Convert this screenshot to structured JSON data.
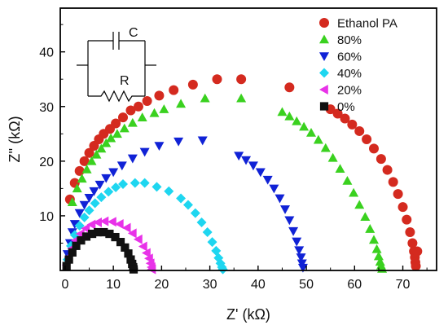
{
  "chart_data": {
    "type": "scatter",
    "title": "",
    "xlabel": "Z' (kΩ)",
    "ylabel": "Z'' (kΩ)",
    "xlim": [
      -1,
      77
    ],
    "ylim": [
      0,
      48
    ],
    "xticks": [
      0,
      10,
      20,
      30,
      40,
      50,
      60,
      70
    ],
    "yticks": [
      10,
      20,
      30,
      40
    ],
    "grid": false,
    "legend_position": "top-right",
    "inset_labels": {
      "capacitor": "C",
      "resistor": "R"
    },
    "series": [
      {
        "name": "Ethanol PA",
        "marker": "circle",
        "color": "#d42a1f",
        "x": [
          1.0,
          2.0,
          3.0,
          4.0,
          5.0,
          6.0,
          7.0,
          8.0,
          9.3,
          10.5,
          12.0,
          13.6,
          15.2,
          17.0,
          19.5,
          22.5,
          26.5,
          31.5,
          36.5,
          46.5,
          55.0,
          56.5,
          58.0,
          59.5,
          61.0,
          62.5,
          64.0,
          65.5,
          66.8,
          68.0,
          69.0,
          70.0,
          70.8,
          71.5,
          72.0,
          72.3,
          72.5,
          72.6,
          72.7,
          73.0
        ],
        "y": [
          13.0,
          16.0,
          18.2,
          20.0,
          21.5,
          22.8,
          24.0,
          25.0,
          25.9,
          26.9,
          28.0,
          29.3,
          30.0,
          31.0,
          32.0,
          33.0,
          34.0,
          35.0,
          35.0,
          33.5,
          29.5,
          28.7,
          27.8,
          26.7,
          25.5,
          24.0,
          22.3,
          20.4,
          18.4,
          16.2,
          14.0,
          11.6,
          9.3,
          7.0,
          5.0,
          3.5,
          2.4,
          1.5,
          0.8,
          3.5
        ]
      },
      {
        "name": "80%",
        "marker": "triangle-up",
        "color": "#3ad11f",
        "x": [
          1.5,
          2.5,
          3.5,
          4.5,
          5.5,
          6.5,
          7.5,
          8.5,
          9.5,
          10.8,
          12.3,
          14.0,
          16.0,
          18.5,
          20.5,
          24.0,
          29.0,
          36.5,
          45.0,
          46.5,
          48.0,
          49.5,
          51.0,
          52.5,
          54.0,
          55.5,
          57.0,
          58.5,
          59.8,
          61.0,
          62.2,
          63.2,
          64.0,
          64.6,
          65.0,
          65.3,
          65.5,
          65.7
        ],
        "y": [
          12.5,
          15.0,
          16.8,
          18.5,
          20.0,
          21.2,
          22.3,
          23.3,
          24.2,
          25.0,
          26.0,
          27.0,
          28.0,
          28.8,
          29.5,
          30.5,
          31.5,
          31.5,
          29.0,
          28.2,
          27.3,
          26.3,
          25.2,
          23.9,
          22.4,
          20.6,
          18.6,
          16.4,
          14.2,
          12.0,
          9.8,
          7.6,
          5.6,
          3.9,
          2.6,
          1.6,
          0.9,
          0.3
        ]
      },
      {
        "name": "60%",
        "marker": "triangle-down",
        "color": "#1022d6",
        "x": [
          0.5,
          1.0,
          1.5,
          2.0,
          3.0,
          4.0,
          5.0,
          6.0,
          7.2,
          8.5,
          10.0,
          11.8,
          14.0,
          16.5,
          19.5,
          23.5,
          28.5,
          36.0,
          37.5,
          39.0,
          40.5,
          42.0,
          43.3,
          44.5,
          45.6,
          46.5,
          47.3,
          48.0,
          48.5,
          48.9,
          49.1,
          49.3
        ],
        "y": [
          3.0,
          5.0,
          7.0,
          8.5,
          10.5,
          12.0,
          13.3,
          14.5,
          15.7,
          16.9,
          18.0,
          19.2,
          20.5,
          21.7,
          22.8,
          23.6,
          23.8,
          21.0,
          20.2,
          19.2,
          18.0,
          16.6,
          15.0,
          13.2,
          11.2,
          9.2,
          7.2,
          5.3,
          3.7,
          2.4,
          1.3,
          0.5
        ]
      },
      {
        "name": "40%",
        "marker": "diamond",
        "color": "#1ed6f0",
        "x": [
          0.5,
          1.2,
          2.0,
          3.0,
          4.0,
          5.0,
          6.2,
          7.5,
          9.0,
          10.5,
          12.0,
          14.5,
          16.5,
          19.0,
          21.5,
          24.0,
          25.5,
          27.0,
          28.3,
          29.5,
          30.5,
          31.3,
          31.8,
          32.2,
          32.5,
          32.7
        ],
        "y": [
          2.0,
          4.5,
          6.5,
          8.2,
          9.7,
          11.0,
          12.3,
          13.4,
          14.4,
          15.2,
          15.8,
          16.0,
          16.0,
          15.3,
          14.5,
          13.2,
          12.0,
          10.5,
          8.8,
          7.0,
          5.2,
          3.6,
          2.3,
          1.3,
          0.6,
          0.2
        ]
      },
      {
        "name": "20%",
        "marker": "triangle-left",
        "color": "#e832e8",
        "x": [
          0.3,
          0.8,
          1.4,
          2.2,
          3.2,
          4.3,
          5.5,
          6.8,
          8.2,
          9.8,
          11.3,
          12.8,
          14.0,
          15.2,
          16.2,
          16.9,
          17.4,
          17.7,
          17.9,
          18.0
        ],
        "y": [
          1.0,
          2.5,
          4.0,
          5.5,
          6.7,
          7.7,
          8.4,
          8.8,
          9.0,
          8.9,
          8.5,
          7.8,
          6.8,
          5.7,
          4.4,
          3.2,
          2.2,
          1.3,
          0.6,
          0.2
        ]
      },
      {
        "name": "0%",
        "marker": "square",
        "color": "#111111",
        "x": [
          0.3,
          0.8,
          1.5,
          2.3,
          3.3,
          4.4,
          5.6,
          6.8,
          8.0,
          9.2,
          10.4,
          11.5,
          12.4,
          13.1,
          13.6,
          13.9,
          14.1,
          14.2
        ],
        "y": [
          0.8,
          2.0,
          3.3,
          4.5,
          5.5,
          6.2,
          6.7,
          7.0,
          7.0,
          6.7,
          6.1,
          5.2,
          4.2,
          3.1,
          2.0,
          1.2,
          0.6,
          0.2
        ]
      }
    ]
  }
}
